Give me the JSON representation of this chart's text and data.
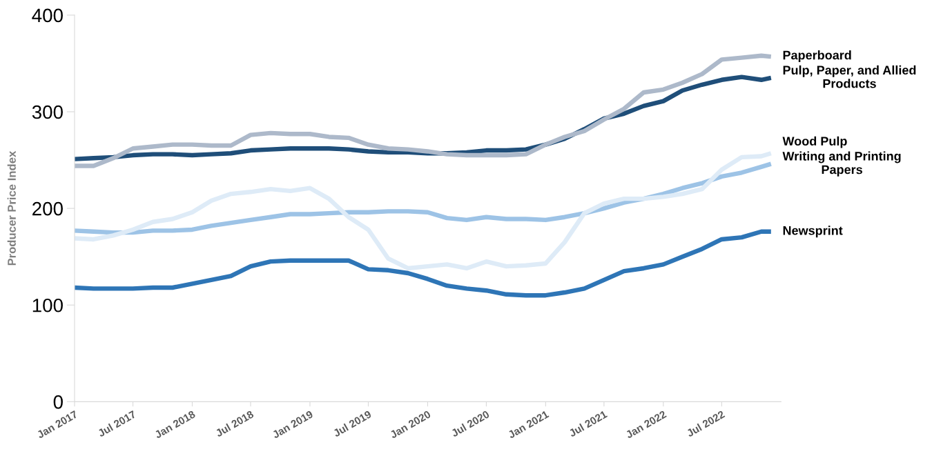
{
  "chart_data": {
    "type": "line",
    "ylabel": "Producer Price Index",
    "x": [
      "2017-01",
      "2017-03",
      "2017-05",
      "2017-07",
      "2017-09",
      "2017-11",
      "2018-01",
      "2018-03",
      "2018-05",
      "2018-07",
      "2018-09",
      "2018-11",
      "2019-01",
      "2019-03",
      "2019-05",
      "2019-07",
      "2019-09",
      "2019-11",
      "2020-01",
      "2020-03",
      "2020-05",
      "2020-07",
      "2020-09",
      "2020-11",
      "2021-01",
      "2021-03",
      "2021-05",
      "2021-07",
      "2021-09",
      "2021-11",
      "2022-01",
      "2022-03",
      "2022-05",
      "2022-07",
      "2022-09",
      "2022-11",
      "2022-12"
    ],
    "series": [
      {
        "name": "Pulp, Paper, and Allied\nProducts",
        "color": "#1f4e79",
        "values": [
          251,
          252,
          253,
          255,
          256,
          256,
          255,
          256,
          257,
          260,
          261,
          262,
          262,
          262,
          261,
          259,
          258,
          258,
          257,
          257,
          258,
          260,
          260,
          261,
          266,
          272,
          282,
          293,
          298,
          306,
          311,
          322,
          328,
          333,
          336,
          333,
          335
        ]
      },
      {
        "name": "Paperboard",
        "color": "#adb9ca",
        "values": [
          244,
          244,
          252,
          262,
          264,
          266,
          266,
          265,
          265,
          276,
          278,
          277,
          277,
          274,
          273,
          266,
          262,
          261,
          259,
          256,
          255,
          255,
          255,
          256,
          266,
          274,
          280,
          292,
          303,
          320,
          323,
          330,
          339,
          354,
          356,
          358,
          357
        ]
      },
      {
        "name": "Writing and Printing\nPapers",
        "color": "#9dc3e6",
        "values": [
          177,
          176,
          175,
          175,
          177,
          177,
          178,
          182,
          185,
          188,
          191,
          194,
          194,
          195,
          196,
          196,
          197,
          197,
          196,
          190,
          188,
          191,
          189,
          189,
          188,
          191,
          195,
          200,
          206,
          210,
          215,
          221,
          226,
          233,
          237,
          243,
          246
        ]
      },
      {
        "name": "Wood Pulp",
        "color": "#deebf7",
        "values": [
          169,
          168,
          172,
          178,
          186,
          189,
          196,
          208,
          215,
          217,
          220,
          218,
          221,
          210,
          191,
          178,
          148,
          138,
          140,
          142,
          138,
          145,
          140,
          141,
          143,
          165,
          195,
          205,
          210,
          210,
          212,
          215,
          220,
          240,
          253,
          254,
          257
        ]
      },
      {
        "name": "Newsprint",
        "color": "#2e75b6",
        "values": [
          118,
          117,
          117,
          117,
          118,
          118,
          122,
          126,
          130,
          140,
          145,
          146,
          146,
          146,
          146,
          137,
          136,
          133,
          127,
          120,
          117,
          115,
          111,
          110,
          110,
          113,
          117,
          126,
          135,
          138,
          142,
          150,
          158,
          168,
          170,
          176,
          176
        ]
      }
    ],
    "xlim": [
      "2017-01",
      "2023-01"
    ],
    "xticks": [
      {
        "value": "2017-01",
        "label": "Jan 2017"
      },
      {
        "value": "2017-07",
        "label": "Jul 2017"
      },
      {
        "value": "2018-01",
        "label": "Jan 2018"
      },
      {
        "value": "2018-07",
        "label": "Jul 2018"
      },
      {
        "value": "2019-01",
        "label": "Jan 2019"
      },
      {
        "value": "2019-07",
        "label": "Jul 2019"
      },
      {
        "value": "2020-01",
        "label": "Jan 2020"
      },
      {
        "value": "2020-07",
        "label": "Jul 2020"
      },
      {
        "value": "2021-01",
        "label": "Jan 2021"
      },
      {
        "value": "2021-07",
        "label": "Jul 2021"
      },
      {
        "value": "2022-01",
        "label": "Jan 2022"
      },
      {
        "value": "2022-07",
        "label": "Jul 2022"
      }
    ],
    "ylim": [
      0,
      400
    ],
    "yticks": [
      0,
      100,
      200,
      300,
      400
    ],
    "grid": false,
    "legend": false,
    "marker": "none",
    "line_style": "solid"
  }
}
